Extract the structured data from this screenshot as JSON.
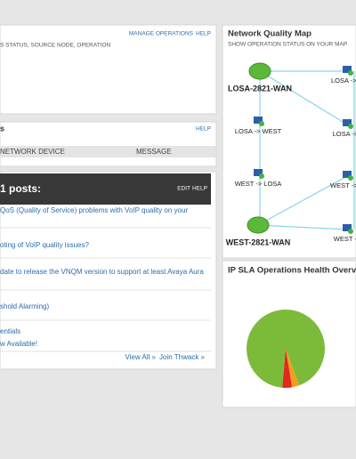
{
  "operations_panel": {
    "links": [
      "MANAGE OPERATIONS",
      "HELP"
    ],
    "subtitle": "S STATUS, SOURCE NODE, OPERATION"
  },
  "events_panel": {
    "title": "s",
    "help": "HELP",
    "columns": [
      "NETWORK DEVICE",
      "MESSAGE"
    ]
  },
  "thwack_panel": {
    "title": "1 posts:",
    "links": [
      "EDIT",
      "HELP"
    ],
    "posts": [
      "QoS (Quality of Service) problems with VoIP quality on your",
      "oting of VoIP quality issues?",
      "date to release the VNQM version to support at least Avaya Aura",
      "shold Alarming)",
      "entials",
      "w Available!"
    ],
    "footer": [
      "View All »",
      "Join Thwack »"
    ]
  },
  "map_panel": {
    "title": "Network Quality Map",
    "subtitle": "SHOW OPERATION STATUS ON YOUR MAP",
    "routers": [
      "LOSA-2821-WAN",
      "WEST-2821-WAN"
    ],
    "operations": [
      "LOSA -> N",
      "LOSA -> WEST",
      "LOSA -> I",
      "WEST -> LOSA",
      "WEST -> N",
      "WEST ->"
    ]
  },
  "chart_data": {
    "type": "pie",
    "title": "IP SLA Operations Health Overvie",
    "values": [
      93,
      3,
      4
    ],
    "colors": [
      "#7cbb3a",
      "#f0a020",
      "#e02a1e"
    ]
  }
}
